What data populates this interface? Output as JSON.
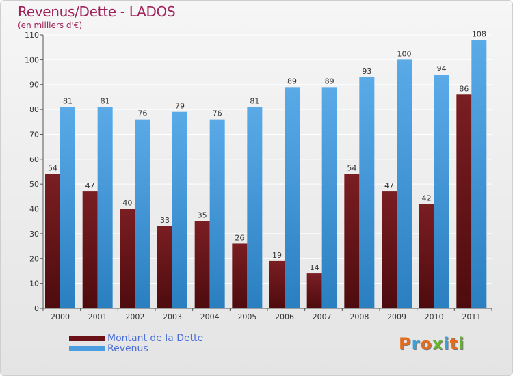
{
  "header": {
    "title": "Revenus/Dette - LADOS",
    "subtitle": "(en milliers d'€)"
  },
  "colors": {
    "title": "#a0225a",
    "dette": "#7a1e22",
    "dette_dark": "#4e0b0e",
    "revenus": "#5aaae8",
    "revenus_dark": "#2a7fc0",
    "legend_text": "#4a6fd6"
  },
  "legend": {
    "items": [
      {
        "label": "Montant de la Dette",
        "color": "#6b1218"
      },
      {
        "label": "Revenus",
        "color": "#4a9ee0"
      }
    ]
  },
  "logo": {
    "text": "Proxiti",
    "letter_colors": [
      "#e46c1e",
      "#3fa1d8",
      "#e46c1e",
      "#67b331",
      "#3fa1d8",
      "#e46c1e",
      "#67b331"
    ]
  },
  "chart_data": {
    "type": "bar",
    "title": "Revenus/Dette - LADOS",
    "subtitle": "(en milliers d'€)",
    "categories": [
      "2000",
      "2001",
      "2002",
      "2003",
      "2004",
      "2005",
      "2006",
      "2007",
      "2008",
      "2009",
      "2010",
      "2011"
    ],
    "series": [
      {
        "name": "Montant de la Dette",
        "values": [
          54,
          47,
          40,
          33,
          35,
          26,
          19,
          14,
          54,
          47,
          42,
          86
        ]
      },
      {
        "name": "Revenus",
        "values": [
          81,
          81,
          76,
          79,
          76,
          81,
          89,
          89,
          93,
          100,
          94,
          108
        ]
      }
    ],
    "ylim": [
      0,
      110
    ],
    "yticks": [
      0,
      10,
      20,
      30,
      40,
      50,
      60,
      70,
      80,
      90,
      100,
      110
    ],
    "grid": true,
    "legend_position": "bottom-left"
  }
}
